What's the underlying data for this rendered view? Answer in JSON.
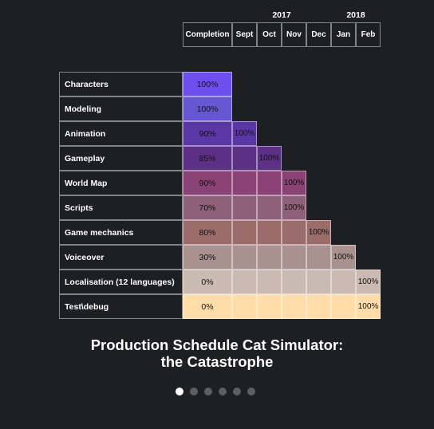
{
  "header": {
    "years": [
      {
        "label": "2017",
        "over": [
          "Sept",
          "Dec"
        ]
      },
      {
        "label": "2018",
        "over": [
          "Jan",
          "Feb"
        ]
      }
    ],
    "columns": [
      "Completion",
      "Sept",
      "Oct",
      "Nov",
      "Dec",
      "Jan",
      "Feb"
    ]
  },
  "rows": [
    {
      "task": "Characters",
      "completion": "100%",
      "color": "#6d4ff0"
    },
    {
      "task": "Modeling",
      "completion": "100%",
      "color": "#6656d0"
    },
    {
      "task": "Animation",
      "completion": "90%",
      "color": "#5b37a6",
      "finish": "Sept",
      "finish_label": "100%"
    },
    {
      "task": "Gameplay",
      "completion": "85%",
      "color": "#5c3185",
      "finish": "Oct",
      "finish_label": "100%"
    },
    {
      "task": "World Map",
      "completion": "90%",
      "color": "#8a4173",
      "finish": "Nov",
      "finish_label": "100%"
    },
    {
      "task": "Scripts",
      "completion": "70%",
      "color": "#8e6079",
      "finish": "Nov",
      "finish_label": "100%"
    },
    {
      "task": "Game mechanics",
      "completion": "80%",
      "color": "#9b6c6a",
      "finish": "Dec",
      "finish_label": "100%"
    },
    {
      "task": "Voiceover",
      "completion": "30%",
      "color": "#a99190",
      "finish": "Jan",
      "finish_label": "100%"
    },
    {
      "task": "Localisation (12 languages)",
      "completion": "0%",
      "color": "#cbbab2",
      "finish": "Feb",
      "finish_label": "100%"
    },
    {
      "task": "Test\\debug",
      "completion": "0%",
      "color": "#ffdca8",
      "finish": "Feb",
      "finish_label": "100%"
    }
  ],
  "title": [
    "Production Schedule Cat Simulator:",
    "the Catastrophe"
  ]
}
